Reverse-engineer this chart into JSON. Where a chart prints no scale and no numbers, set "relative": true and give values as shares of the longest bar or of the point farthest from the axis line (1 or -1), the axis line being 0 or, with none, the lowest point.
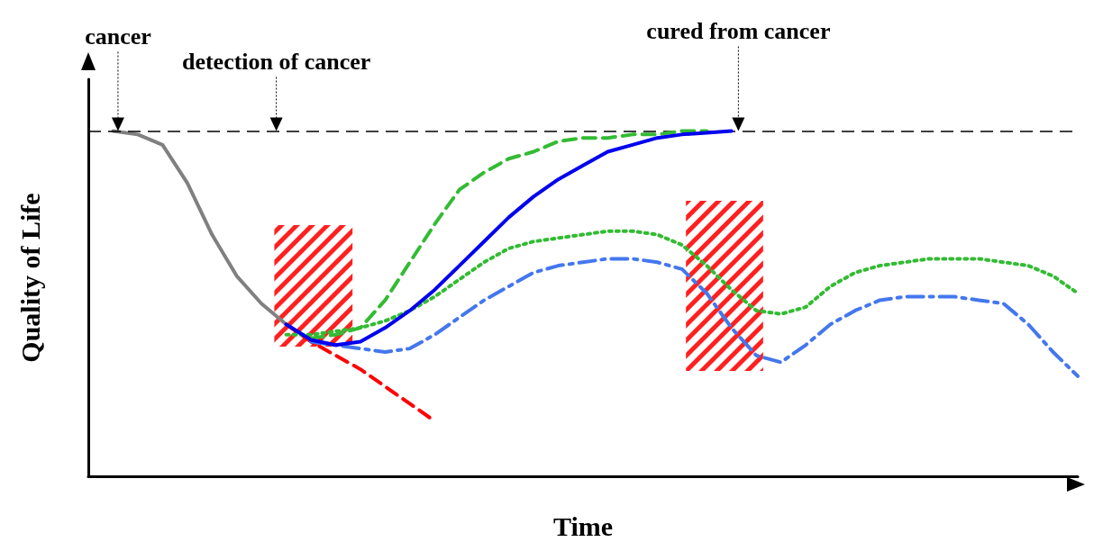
{
  "chart_data": {
    "type": "line",
    "relative": true,
    "xlabel": "Time",
    "ylabel": "Quality of Life",
    "grid": false,
    "marker": "none",
    "categories": [
      null,
      null,
      null,
      null,
      null,
      null,
      null,
      null,
      null,
      null,
      null,
      null,
      null,
      null,
      null,
      null,
      null,
      null,
      null,
      null,
      null,
      null,
      null,
      null,
      null,
      null,
      null,
      null,
      null,
      null,
      null,
      null,
      null,
      null,
      null,
      null,
      null,
      null,
      null,
      null,
      null
    ],
    "series": [
      {
        "color": "#808080",
        "line_style": "solid",
        "values": [
          null,
          1.0,
          0.99,
          0.96,
          0.85,
          0.7,
          0.58,
          0.5,
          0.44,
          null,
          null,
          null,
          null,
          null,
          null,
          null,
          null,
          null,
          null,
          null,
          null,
          null,
          null,
          null,
          null,
          null,
          null,
          null,
          null,
          null,
          null,
          null,
          null,
          null,
          null,
          null,
          null,
          null,
          null,
          null,
          null
        ]
      },
      {
        "color": "#ff0000",
        "line_style": "dashed",
        "values": [
          null,
          null,
          null,
          null,
          null,
          null,
          null,
          null,
          0.44,
          0.39,
          0.35,
          0.31,
          0.26,
          0.21,
          0.16,
          null,
          null,
          null,
          null,
          null,
          null,
          null,
          null,
          null,
          null,
          null,
          null,
          null,
          null,
          null,
          null,
          null,
          null,
          null,
          null,
          null,
          null,
          null,
          null,
          null,
          null
        ]
      },
      {
        "color": "#33bb33",
        "line_style": "dashed",
        "values": [
          null,
          null,
          null,
          null,
          null,
          null,
          null,
          null,
          null,
          0.4,
          0.41,
          0.43,
          0.51,
          0.62,
          0.73,
          0.83,
          0.88,
          0.92,
          0.94,
          0.97,
          0.98,
          0.98,
          0.99,
          0.99,
          1.0,
          1.0,
          null,
          null,
          null,
          null,
          null,
          null,
          null,
          null,
          null,
          null,
          null,
          null,
          null,
          null,
          null
        ]
      },
      {
        "color": "#33bb33",
        "line_style": "dotted",
        "values": [
          null,
          null,
          null,
          null,
          null,
          null,
          null,
          null,
          0.41,
          0.41,
          0.42,
          0.43,
          0.45,
          0.48,
          0.52,
          0.57,
          0.62,
          0.66,
          0.68,
          0.69,
          0.7,
          0.71,
          0.71,
          0.7,
          0.67,
          0.61,
          0.54,
          0.48,
          0.47,
          0.49,
          0.55,
          0.59,
          0.61,
          0.62,
          0.63,
          0.63,
          0.63,
          0.62,
          0.61,
          0.58,
          0.53
        ]
      },
      {
        "color": "#4477ee",
        "line_style": "dashdot",
        "values": [
          null,
          null,
          null,
          null,
          null,
          null,
          null,
          null,
          null,
          0.39,
          0.38,
          0.37,
          0.36,
          0.37,
          0.41,
          0.46,
          0.51,
          0.55,
          0.59,
          0.61,
          0.62,
          0.63,
          0.63,
          0.62,
          0.6,
          0.53,
          0.43,
          0.35,
          0.33,
          0.38,
          0.44,
          0.48,
          0.51,
          0.52,
          0.52,
          0.52,
          0.51,
          0.5,
          0.44,
          0.36,
          0.29
        ]
      },
      {
        "color": "#0000ee",
        "line_style": "solid",
        "values": [
          null,
          null,
          null,
          null,
          null,
          null,
          null,
          null,
          0.44,
          0.395,
          0.38,
          0.39,
          0.43,
          0.48,
          0.54,
          0.61,
          0.68,
          0.75,
          0.81,
          0.86,
          0.9,
          0.94,
          0.96,
          0.98,
          0.99,
          0.995,
          1.0,
          null,
          null,
          null,
          null,
          null,
          null,
          null,
          null,
          null,
          null,
          null,
          null,
          null,
          null
        ]
      }
    ],
    "ref_lines": [
      {
        "axis": "y",
        "value": 1,
        "color": "#000000",
        "line_style": "dashed"
      }
    ],
    "annotations": [
      "cancer",
      "detection of cancer",
      "cured from cancer"
    ]
  }
}
